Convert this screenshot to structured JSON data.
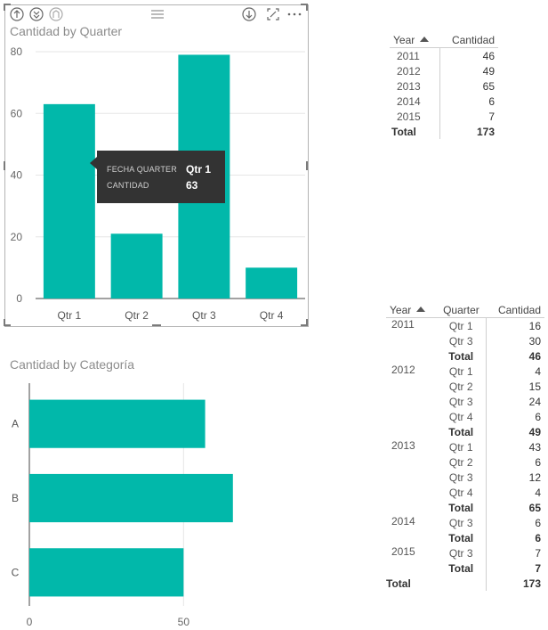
{
  "colors": {
    "bar": "#01b8aa",
    "tooltip_bg": "#333333",
    "frame": "#b3b3b3"
  },
  "header_icons": [
    "drill-up-icon",
    "drill-down-level-icon",
    "expand-all-icon",
    "drag-handle-icon",
    "drill-mode-icon",
    "focus-mode-icon",
    "more-options-icon"
  ],
  "chart_data": [
    {
      "type": "bar",
      "title": "Cantidad by Quarter",
      "categories": [
        "Qtr 1",
        "Qtr 2",
        "Qtr 3",
        "Qtr 4"
      ],
      "values": [
        63,
        21,
        79,
        10
      ],
      "yticks": [
        "0",
        "20",
        "40",
        "60",
        "80"
      ],
      "ylim": [
        0,
        80
      ],
      "xlabel": "",
      "ylabel": "",
      "grid": true,
      "tooltip": {
        "label1": "FECHA QUARTER",
        "value1": "Qtr 1",
        "label2": "CANTIDAD",
        "value2": "63"
      }
    },
    {
      "type": "bar",
      "orientation": "horizontal",
      "title": "Cantidad by Categoría",
      "categories": [
        "A",
        "B",
        "C"
      ],
      "values": [
        57,
        66,
        50
      ],
      "xticks": [
        "0",
        "50"
      ],
      "xlim": [
        0,
        75
      ],
      "xlabel": "",
      "ylabel": ""
    }
  ],
  "table1": {
    "headers": {
      "year": "Year",
      "cantidad": "Cantidad"
    },
    "rows": [
      {
        "year": "2011",
        "cantidad": "46"
      },
      {
        "year": "2012",
        "cantidad": "49"
      },
      {
        "year": "2013",
        "cantidad": "65"
      },
      {
        "year": "2014",
        "cantidad": "6"
      },
      {
        "year": "2015",
        "cantidad": "7"
      }
    ],
    "total_label": "Total",
    "total_value": "173"
  },
  "table2": {
    "headers": {
      "year": "Year",
      "quarter": "Quarter",
      "cantidad": "Cantidad"
    },
    "rows": [
      {
        "year": "2011",
        "quarter": "Qtr 1",
        "cantidad": "16",
        "total": false
      },
      {
        "year": "",
        "quarter": "Qtr 3",
        "cantidad": "30",
        "total": false
      },
      {
        "year": "",
        "quarter": "Total",
        "cantidad": "46",
        "total": true
      },
      {
        "year": "2012",
        "quarter": "Qtr 1",
        "cantidad": "4",
        "total": false
      },
      {
        "year": "",
        "quarter": "Qtr 2",
        "cantidad": "15",
        "total": false
      },
      {
        "year": "",
        "quarter": "Qtr 3",
        "cantidad": "24",
        "total": false
      },
      {
        "year": "",
        "quarter": "Qtr 4",
        "cantidad": "6",
        "total": false
      },
      {
        "year": "",
        "quarter": "Total",
        "cantidad": "49",
        "total": true
      },
      {
        "year": "2013",
        "quarter": "Qtr 1",
        "cantidad": "43",
        "total": false
      },
      {
        "year": "",
        "quarter": "Qtr 2",
        "cantidad": "6",
        "total": false
      },
      {
        "year": "",
        "quarter": "Qtr 3",
        "cantidad": "12",
        "total": false
      },
      {
        "year": "",
        "quarter": "Qtr 4",
        "cantidad": "4",
        "total": false
      },
      {
        "year": "",
        "quarter": "Total",
        "cantidad": "65",
        "total": true
      },
      {
        "year": "2014",
        "quarter": "Qtr 3",
        "cantidad": "6",
        "total": false
      },
      {
        "year": "",
        "quarter": "Total",
        "cantidad": "6",
        "total": true
      },
      {
        "year": "2015",
        "quarter": "Qtr 3",
        "cantidad": "7",
        "total": false
      },
      {
        "year": "",
        "quarter": "Total",
        "cantidad": "7",
        "total": true
      }
    ],
    "grand_total_label": "Total",
    "grand_total_value": "173"
  }
}
